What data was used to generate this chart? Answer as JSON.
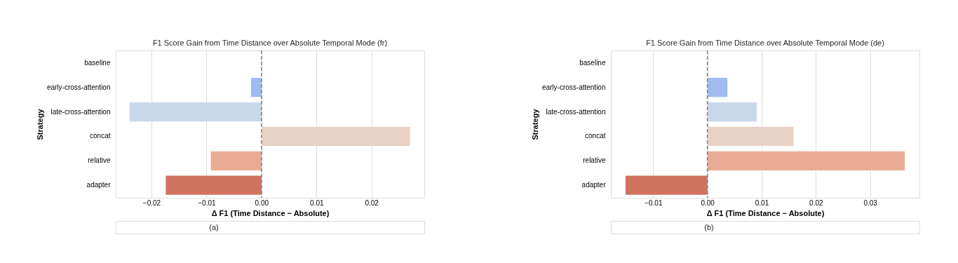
{
  "chart_data": [
    {
      "type": "bar",
      "orientation": "horizontal",
      "title": "F1 Score Gain from Time Distance over Absolute Temporal Mode (fr)",
      "xlabel": "Δ F1 (Time Distance − Absolute)",
      "ylabel": "Strategy",
      "categories": [
        "baseline",
        "early-cross-attention",
        "late-cross-attention",
        "concat",
        "relative",
        "adapter"
      ],
      "values": [
        0,
        -0.0019,
        -0.024,
        0.027,
        -0.0092,
        -0.0174
      ],
      "colors": [
        "#7b9ff9",
        "#a1bbf1",
        "#cbd7ea",
        "#e8d1c5",
        "#eaab94",
        "#d07460"
      ],
      "xlim": [
        -0.0265,
        0.0296
      ],
      "xticks": [
        {
          "value": -0.02,
          "label": "−0.02"
        },
        {
          "value": -0.01,
          "label": "−0.01"
        },
        {
          "value": 0,
          "label": "0.00"
        },
        {
          "value": 0.01,
          "label": "0.01"
        },
        {
          "value": 0.02,
          "label": "0.02"
        }
      ],
      "ref_lines": [
        {
          "axis": "x",
          "value": 0,
          "color": "#808080",
          "line_style": "dashed"
        }
      ],
      "grid": "x",
      "annotations": [
        "(a)"
      ]
    },
    {
      "type": "bar",
      "orientation": "horizontal",
      "title": "F1 Score Gain from Time Distance over Absolute Temporal Mode (de)",
      "xlabel": "Δ F1 (Time Distance − Absolute)",
      "ylabel": "Strategy",
      "categories": [
        "baseline",
        "early-cross-attention",
        "late-cross-attention",
        "concat",
        "relative",
        "adapter"
      ],
      "values": [
        0,
        0.0037,
        0.0091,
        0.0159,
        0.0364,
        -0.0151
      ],
      "colors": [
        "#7b9ff9",
        "#a1bbf1",
        "#cbd7ea",
        "#e8d1c5",
        "#eaab94",
        "#d07460"
      ],
      "xlim": [
        -0.0178,
        0.0391
      ],
      "xticks": [
        {
          "value": -0.01,
          "label": "−0.01"
        },
        {
          "value": 0,
          "label": "0.00"
        },
        {
          "value": 0.01,
          "label": "0.01"
        },
        {
          "value": 0.02,
          "label": "0.02"
        },
        {
          "value": 0.03,
          "label": "0.03"
        }
      ],
      "ref_lines": [
        {
          "axis": "x",
          "value": 0,
          "color": "#808080",
          "line_style": "dashed"
        }
      ],
      "grid": "x",
      "annotations": [
        "(b)"
      ]
    }
  ]
}
